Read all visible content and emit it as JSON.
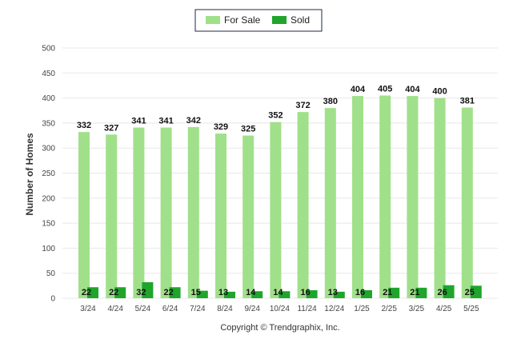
{
  "chart_data": {
    "type": "bar",
    "categories": [
      "3/24",
      "4/24",
      "5/24",
      "6/24",
      "7/24",
      "8/24",
      "9/24",
      "10/24",
      "11/24",
      "12/24",
      "1/25",
      "2/25",
      "3/25",
      "4/25",
      "5/25"
    ],
    "series": [
      {
        "name": "For Sale",
        "color": "#a0e08a",
        "values": [
          332,
          327,
          341,
          341,
          342,
          329,
          325,
          352,
          372,
          380,
          404,
          405,
          404,
          400,
          381
        ]
      },
      {
        "name": "Sold",
        "color": "#1fa52b",
        "values": [
          22,
          22,
          32,
          22,
          15,
          13,
          14,
          14,
          16,
          13,
          16,
          21,
          21,
          26,
          25
        ]
      }
    ],
    "ylabel": "Number of Homes",
    "ylim": [
      0,
      500
    ],
    "yticks": [
      0,
      50,
      100,
      150,
      200,
      250,
      300,
      350,
      400,
      450,
      500
    ],
    "legend_position": "top-center",
    "grid": true
  },
  "footer": "Copyright © Trendgraphix, Inc."
}
